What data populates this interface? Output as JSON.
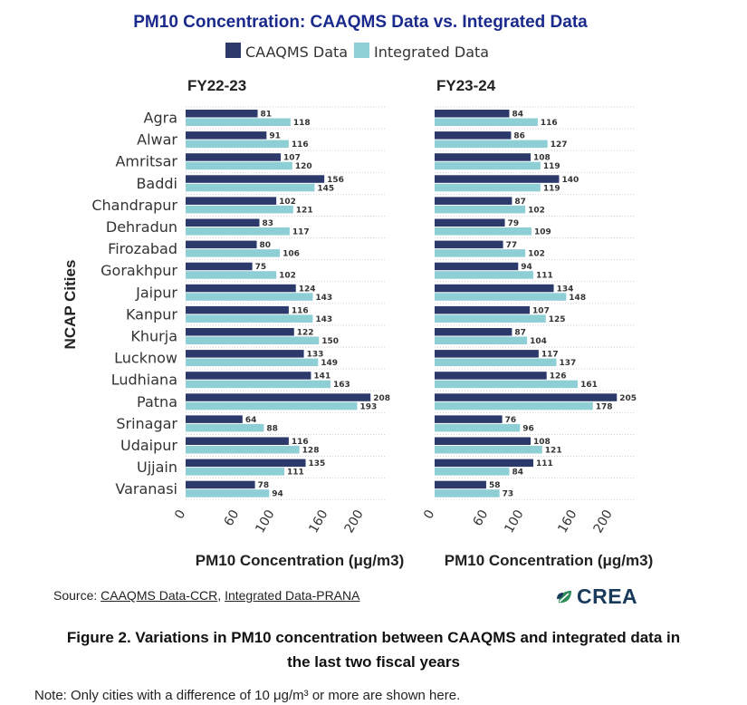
{
  "chart_data": {
    "type": "bar",
    "orientation": "horizontal",
    "title": "PM10 Concentration: CAAQMS Data vs. Integrated Data",
    "legend": [
      "CAAQMS Data",
      "Integrated Data"
    ],
    "legend_position": "top",
    "ylabel": "NCAP Cities",
    "xlabel": "PM10 Concentration (μg/m3)",
    "xlim": [
      0,
      220
    ],
    "xticks": [
      0,
      60,
      100,
      160,
      200
    ],
    "colors": {
      "caaqms": "#2b3a6b",
      "integrated": "#8ecfd6"
    },
    "categories": [
      "Agra",
      "Alwar",
      "Amritsar",
      "Baddi",
      "Chandrapur",
      "Dehradun",
      "Firozabad",
      "Gorakhpur",
      "Jaipur",
      "Kanpur",
      "Khurja",
      "Lucknow",
      "Ludhiana",
      "Patna",
      "Srinagar",
      "Udaipur",
      "Ujjain",
      "Varanasi"
    ],
    "panels": [
      {
        "title": "FY22-23",
        "series": [
          {
            "name": "CAAQMS Data",
            "values": [
              81,
              91,
              107,
              156,
              102,
              83,
              80,
              75,
              124,
              116,
              122,
              133,
              141,
              208,
              64,
              116,
              135,
              78
            ]
          },
          {
            "name": "Integrated Data",
            "values": [
              118,
              116,
              120,
              145,
              121,
              117,
              106,
              102,
              143,
              143,
              150,
              149,
              163,
              193,
              88,
              128,
              111,
              94
            ]
          }
        ]
      },
      {
        "title": "FY23-24",
        "series": [
          {
            "name": "CAAQMS Data",
            "values": [
              84,
              86,
              108,
              140,
              87,
              79,
              77,
              94,
              134,
              107,
              87,
              117,
              126,
              205,
              76,
              108,
              111,
              58
            ]
          },
          {
            "name": "Integrated Data",
            "values": [
              116,
              127,
              119,
              119,
              102,
              109,
              102,
              111,
              148,
              125,
              104,
              137,
              161,
              178,
              96,
              121,
              84,
              73
            ]
          }
        ]
      }
    ]
  },
  "source": {
    "prefix": "Source: ",
    "link1": "CAAQMS Data-CCR",
    "separator": ", ",
    "link2": "Integrated Data-PRANA"
  },
  "brand": {
    "name": "CREA",
    "logo_icon": "crea-leaf-icon"
  },
  "caption": {
    "line1": "Figure 2.  Variations in PM10 concentration between CAAQMS and integrated data in",
    "line2": "the last two fiscal years"
  },
  "note": "Note: Only cities with a difference of 10 μg/m³ or more are shown here."
}
